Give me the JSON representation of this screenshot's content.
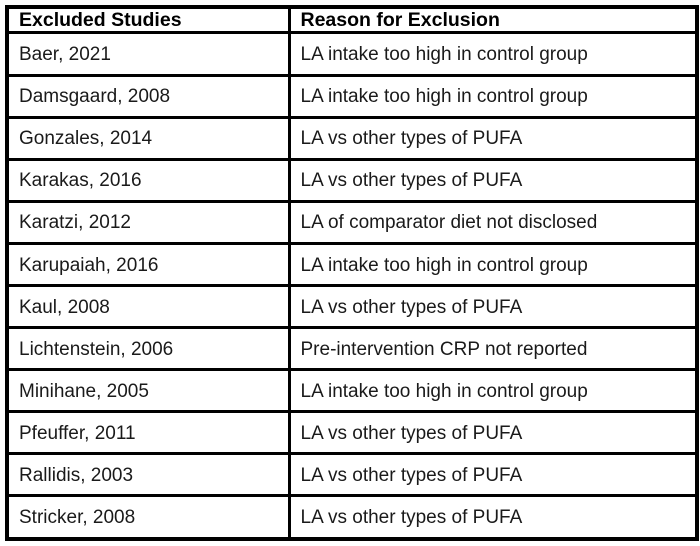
{
  "table": {
    "columns": [
      {
        "label": "Excluded Studies"
      },
      {
        "label": "Reason for Exclusion"
      }
    ],
    "rows": [
      {
        "study": "Baer, 2021",
        "reason": "LA intake too high in control group"
      },
      {
        "study": "Damsgaard, 2008",
        "reason": "LA intake too high in control group"
      },
      {
        "study": "Gonzales, 2014",
        "reason": "LA vs other types of PUFA"
      },
      {
        "study": "Karakas, 2016",
        "reason": "LA vs other types of PUFA"
      },
      {
        "study": "Karatzi, 2012",
        "reason": "LA of comparator diet not disclosed"
      },
      {
        "study": "Karupaiah, 2016",
        "reason": "LA intake too high in control group"
      },
      {
        "study": "Kaul, 2008",
        "reason": "LA vs other types of PUFA"
      },
      {
        "study": "Lichtenstein, 2006",
        "reason": "Pre-intervention CRP not reported"
      },
      {
        "study": "Minihane, 2005",
        "reason": "LA intake too high in control group"
      },
      {
        "study": "Pfeuffer, 2011",
        "reason": "LA vs other types of PUFA"
      },
      {
        "study": "Rallidis, 2003",
        "reason": "LA vs other types of PUFA"
      },
      {
        "study": "Stricker, 2008",
        "reason": "LA vs other types of PUFA"
      }
    ]
  },
  "colors": {
    "border": "#000000",
    "text": "#1a1a1a",
    "background": "#ffffff"
  }
}
